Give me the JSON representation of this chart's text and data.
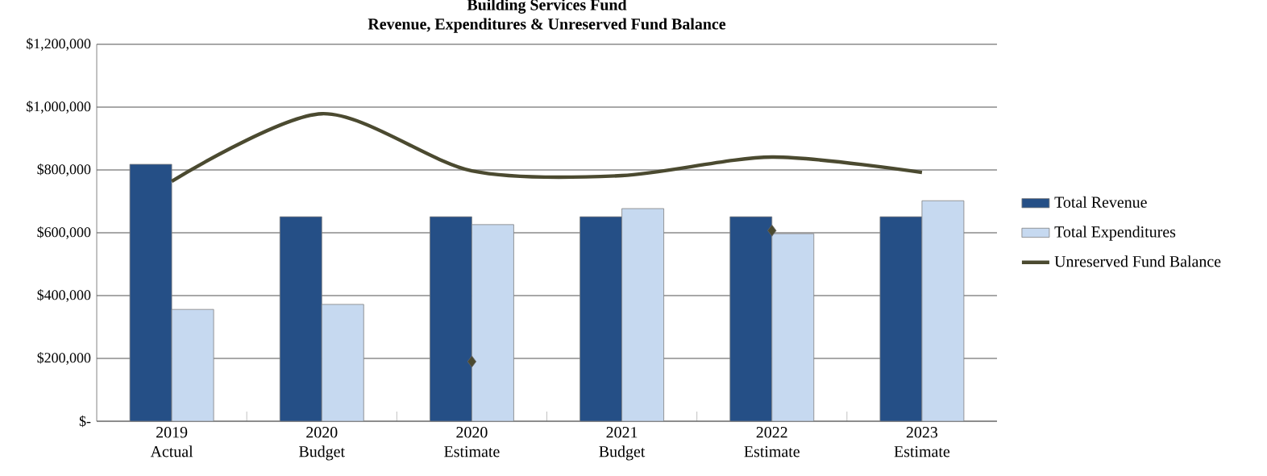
{
  "chart_data": {
    "type": "bar",
    "title": "Building Services Fund",
    "subtitle": "Revenue, Expenditures & Unreserved Fund Balance",
    "categories": [
      "2019 Actual",
      "2020 Budget",
      "2020 Estimate",
      "2021 Budget",
      "2022 Estimate",
      "2023 Estimate"
    ],
    "series": [
      {
        "name": "Total Revenue",
        "color": "#254f86",
        "values": [
          818000,
          651000,
          651000,
          651000,
          651000,
          651000
        ]
      },
      {
        "name": "Total Expenditures",
        "color": "#c6d9f0",
        "values": [
          356000,
          372000,
          626000,
          677000,
          597000,
          702000
        ]
      },
      {
        "name": "Unreserved Fund Balance",
        "type": "line",
        "color": "#4b4a30",
        "values": [
          764000,
          979000,
          797000,
          782000,
          841000,
          792000
        ]
      },
      {
        "type": "scatter",
        "marker": "diamond",
        "color": "#4b4a30",
        "values": [
          null,
          null,
          190000,
          null,
          607000,
          null
        ]
      }
    ],
    "ylim": [
      0,
      1200000
    ],
    "yticks": [
      {
        "value": 0,
        "label": "$-"
      },
      {
        "value": 200000,
        "label": "$200,000"
      },
      {
        "value": 400000,
        "label": "$400,000"
      },
      {
        "value": 600000,
        "label": "$600,000"
      },
      {
        "value": 800000,
        "label": "$800,000"
      },
      {
        "value": 1000000,
        "label": "$1,000,000"
      },
      {
        "value": 1200000,
        "label": "$1,200,000"
      }
    ],
    "grid": "y",
    "legend": "right"
  }
}
